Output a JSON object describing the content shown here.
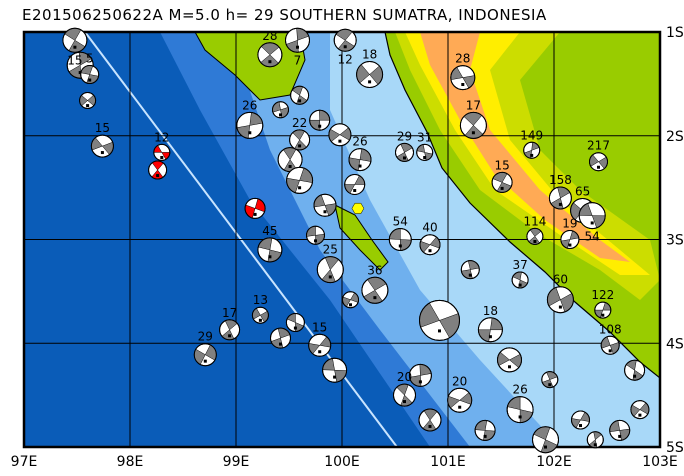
{
  "title": "E201506250622A M=5.0 h= 29 SOUTHERN SUMATRA, INDONESIA",
  "map": {
    "lon_range": [
      97,
      103
    ],
    "lat_range_south": [
      1,
      5
    ],
    "lon_labels": [
      "97E",
      "98E",
      "99E",
      "100E",
      "101E",
      "102E",
      "103E"
    ],
    "lat_labels": [
      "1S",
      "2S",
      "3S",
      "4S",
      "5S"
    ],
    "colors": {
      "deep_ocean": "#0a5cb8",
      "mid_ocean": "#2f7ad6",
      "shallow": "#6fb0ee",
      "shelf": "#a8d8f8",
      "lowland": "#99cc00",
      "upland": "#ccdd00",
      "highland": "#ffee00",
      "mountain": "#ffaa55",
      "trench": "#c8e4ff",
      "mechanism_fill": "#808080",
      "highlight_fill": "#ff0000",
      "epicenter": "#ffff00"
    },
    "epicenter": {
      "lon": 100.15,
      "lat": 2.7
    }
  },
  "events": [
    {
      "lon": 98.3,
      "lat": 2.16,
      "depth": "12",
      "color": "#ff0000"
    },
    {
      "lon": 98.26,
      "lat": 2.33,
      "depth": "",
      "color": "#ff0000"
    },
    {
      "lon": 99.18,
      "lat": 2.7,
      "depth": "",
      "color": "#ff0000"
    },
    {
      "lon": 97.74,
      "lat": 2.1,
      "depth": "15"
    },
    {
      "lon": 97.48,
      "lat": 1.08,
      "depth": "15"
    },
    {
      "lon": 97.53,
      "lat": 1.32,
      "depth": ""
    },
    {
      "lon": 97.6,
      "lat": 1.66,
      "depth": ""
    },
    {
      "lon": 97.62,
      "lat": 1.41,
      "depth": "5"
    },
    {
      "lon": 98.94,
      "lat": 3.87,
      "depth": "17"
    },
    {
      "lon": 98.71,
      "lat": 4.11,
      "depth": "29"
    },
    {
      "lon": 101.14,
      "lat": 1.44,
      "depth": "28"
    },
    {
      "lon": 101.24,
      "lat": 1.9,
      "depth": "17"
    },
    {
      "lon": 101.79,
      "lat": 2.14,
      "depth": "149"
    },
    {
      "lon": 102.42,
      "lat": 2.25,
      "depth": "217"
    },
    {
      "lon": 101.51,
      "lat": 2.45,
      "depth": "15"
    },
    {
      "lon": 102.06,
      "lat": 2.6,
      "depth": "158"
    },
    {
      "lon": 102.27,
      "lat": 2.72,
      "depth": "65"
    },
    {
      "lon": 102.36,
      "lat": 2.77,
      "depth": "54"
    },
    {
      "lon": 101.82,
      "lat": 2.97,
      "depth": "114"
    },
    {
      "lon": 102.15,
      "lat": 3.0,
      "depth": "19"
    },
    {
      "lon": 100.92,
      "lat": 3.78,
      "depth": "",
      "big": true
    },
    {
      "lon": 100.03,
      "lat": 1.08,
      "depth": "12"
    },
    {
      "lon": 99.58,
      "lat": 1.08,
      "depth": "7"
    },
    {
      "lon": 100.26,
      "lat": 1.41,
      "depth": "18"
    },
    {
      "lon": 100.78,
      "lat": 2.16,
      "depth": "31"
    },
    {
      "lon": 100.59,
      "lat": 2.16,
      "depth": "29"
    },
    {
      "lon": 100.12,
      "lat": 2.47,
      "depth": ""
    },
    {
      "lon": 99.84,
      "lat": 2.67,
      "depth": ""
    },
    {
      "lon": 99.32,
      "lat": 1.22,
      "depth": "28"
    },
    {
      "lon": 99.13,
      "lat": 1.9,
      "depth": "26"
    },
    {
      "lon": 99.23,
      "lat": 3.73,
      "depth": "13"
    },
    {
      "lon": 99.56,
      "lat": 3.8,
      "depth": ""
    },
    {
      "lon": 99.42,
      "lat": 3.95,
      "depth": ""
    },
    {
      "lon": 99.79,
      "lat": 4.02,
      "depth": "15"
    },
    {
      "lon": 99.93,
      "lat": 4.26,
      "depth": ""
    },
    {
      "lon": 100.31,
      "lat": 3.49,
      "depth": "36"
    },
    {
      "lon": 102.46,
      "lat": 3.68,
      "depth": "122"
    },
    {
      "lon": 102.53,
      "lat": 4.02,
      "depth": "108"
    },
    {
      "lon": 102.76,
      "lat": 4.26,
      "depth": ""
    },
    {
      "lon": 100.74,
      "lat": 4.31,
      "depth": ""
    },
    {
      "lon": 101.11,
      "lat": 4.55,
      "depth": "20"
    },
    {
      "lon": 101.68,
      "lat": 4.64,
      "depth": "26"
    },
    {
      "lon": 101.96,
      "lat": 4.35,
      "depth": ""
    },
    {
      "lon": 102.25,
      "lat": 4.74,
      "depth": ""
    },
    {
      "lon": 102.62,
      "lat": 4.84,
      "depth": ""
    },
    {
      "lon": 100.59,
      "lat": 4.5,
      "depth": "20"
    },
    {
      "lon": 101.4,
      "lat": 3.87,
      "depth": "18"
    },
    {
      "lon": 102.06,
      "lat": 3.58,
      "depth": "60"
    },
    {
      "lon": 101.68,
      "lat": 3.39,
      "depth": "37"
    },
    {
      "lon": 101.21,
      "lat": 3.29,
      "depth": ""
    },
    {
      "lon": 100.83,
      "lat": 3.05,
      "depth": "40"
    },
    {
      "lon": 100.55,
      "lat": 3.0,
      "depth": "54"
    },
    {
      "lon": 99.51,
      "lat": 2.23,
      "depth": ""
    },
    {
      "lon": 99.6,
      "lat": 2.43,
      "depth": ""
    },
    {
      "lon": 99.42,
      "lat": 1.75,
      "depth": ""
    },
    {
      "lon": 99.6,
      "lat": 1.61,
      "depth": ""
    },
    {
      "lon": 99.79,
      "lat": 1.85,
      "depth": ""
    },
    {
      "lon": 99.98,
      "lat": 1.99,
      "depth": ""
    },
    {
      "lon": 99.32,
      "lat": 3.1,
      "depth": "45"
    },
    {
      "lon": 99.89,
      "lat": 3.29,
      "depth": "25"
    },
    {
      "lon": 100.08,
      "lat": 3.58,
      "depth": ""
    },
    {
      "lon": 99.75,
      "lat": 2.96,
      "depth": ""
    },
    {
      "lon": 99.6,
      "lat": 2.04,
      "depth": "22"
    },
    {
      "lon": 100.17,
      "lat": 2.23,
      "depth": "26"
    },
    {
      "lon": 101.58,
      "lat": 4.16,
      "depth": ""
    },
    {
      "lon": 101.92,
      "lat": 4.93,
      "depth": ""
    },
    {
      "lon": 102.39,
      "lat": 4.93,
      "depth": ""
    },
    {
      "lon": 102.81,
      "lat": 4.64,
      "depth": ""
    },
    {
      "lon": 101.35,
      "lat": 4.84,
      "depth": ""
    },
    {
      "lon": 100.83,
      "lat": 4.74,
      "depth": ""
    }
  ]
}
